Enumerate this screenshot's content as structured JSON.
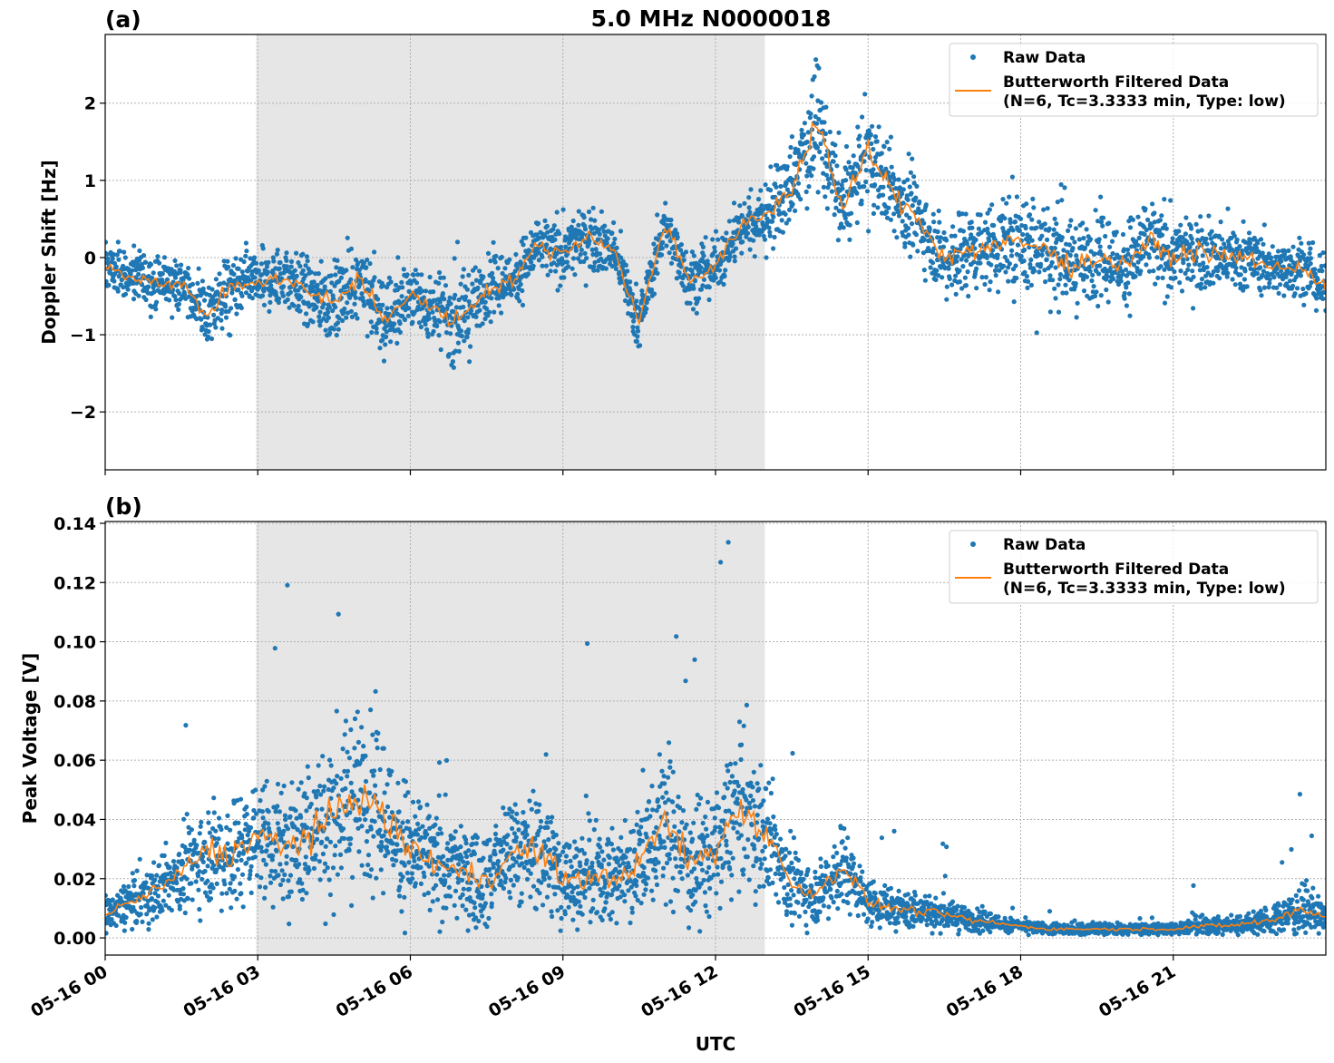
{
  "title": "5.0 MHz N0000018",
  "chart_data": [
    {
      "type": "scatter",
      "panel_label": "(a)",
      "title": "5.0 MHz N0000018",
      "xlabel": "",
      "ylabel": "Doppler Shift [Hz]",
      "xlim_hours": [
        0,
        24
      ],
      "ylim": [
        -2.75,
        2.89
      ],
      "yticks": [
        -2,
        -1,
        0,
        1,
        2
      ],
      "ytick_labels": [
        "−2",
        "−1",
        "0",
        "1",
        "2"
      ],
      "grid": true,
      "shaded_interval_hours": [
        2.97,
        12.97
      ],
      "legend": {
        "position": "top-right",
        "entries": [
          "Raw Data",
          "Butterworth Filtered Data",
          "(N=6, Tc=3.3333 min, Type: low)"
        ]
      },
      "x_hours": [
        0,
        0.5,
        1,
        1.5,
        2,
        2.5,
        3,
        3.5,
        4,
        4.5,
        5,
        5.5,
        6,
        6.5,
        7,
        7.5,
        8,
        8.5,
        9,
        9.5,
        10,
        10.5,
        11,
        11.5,
        12,
        12.5,
        13,
        13.5,
        14,
        14.5,
        15,
        15.5,
        16,
        16.5,
        17,
        17.5,
        18,
        18.5,
        19,
        19.5,
        20,
        20.5,
        21,
        21.5,
        22,
        22.5,
        23,
        23.5,
        24
      ],
      "series": [
        {
          "name": "Butterworth Filtered Data",
          "kind": "line",
          "color": "#ff7f0e",
          "values": [
            -0.1,
            -0.25,
            -0.3,
            -0.35,
            -0.75,
            -0.35,
            -0.35,
            -0.25,
            -0.45,
            -0.6,
            -0.25,
            -0.85,
            -0.45,
            -0.7,
            -0.8,
            -0.4,
            -0.3,
            0.15,
            0.05,
            0.3,
            0.1,
            -0.85,
            0.45,
            -0.3,
            -0.1,
            0.4,
            0.55,
            0.9,
            1.8,
            0.6,
            1.4,
            0.8,
            0.5,
            0.0,
            0.1,
            0.15,
            0.2,
            0.1,
            -0.1,
            0.0,
            -0.1,
            0.2,
            0.0,
            0.1,
            0.0,
            0.0,
            -0.15,
            -0.1,
            -0.4
          ]
        },
        {
          "name": "Raw Data",
          "kind": "scatter",
          "color": "#1f77b4",
          "spread_halfwidth": [
            0.3,
            0.3,
            0.3,
            0.3,
            0.4,
            0.35,
            0.35,
            0.4,
            0.45,
            0.5,
            0.45,
            0.5,
            0.4,
            0.4,
            0.6,
            0.4,
            0.35,
            0.35,
            0.4,
            0.4,
            0.35,
            0.35,
            0.35,
            0.35,
            0.35,
            0.35,
            0.45,
            0.6,
            0.7,
            0.5,
            0.55,
            0.55,
            0.5,
            0.5,
            0.55,
            0.55,
            0.6,
            0.55,
            0.55,
            0.55,
            0.5,
            0.55,
            0.5,
            0.45,
            0.45,
            0.4,
            0.35,
            0.35,
            0.35
          ]
        }
      ]
    },
    {
      "type": "scatter",
      "panel_label": "(b)",
      "xlabel": "UTC",
      "ylabel": "Peak Voltage [V]",
      "xlim_hours": [
        0,
        24
      ],
      "ylim": [
        -0.0058,
        0.1406
      ],
      "yticks": [
        0,
        0.02,
        0.04,
        0.06,
        0.08,
        0.1,
        0.12,
        0.14
      ],
      "ytick_labels": [
        "0.00",
        "0.02",
        "0.04",
        "0.06",
        "0.08",
        "0.10",
        "0.12",
        "0.14"
      ],
      "xtick_labels": [
        "05-16 00",
        "05-16 03",
        "05-16 06",
        "05-16 09",
        "05-16 12",
        "05-16 15",
        "05-16 18",
        "05-16 21"
      ],
      "grid": true,
      "shaded_interval_hours": [
        2.97,
        12.97
      ],
      "legend": {
        "position": "top-right",
        "entries": [
          "Raw Data",
          "Butterworth Filtered Data",
          "(N=6, Tc=3.3333 min, Type: low)"
        ]
      },
      "x_hours": [
        0,
        0.5,
        1,
        1.5,
        2,
        2.5,
        3,
        3.5,
        4,
        4.5,
        5,
        5.5,
        6,
        6.5,
        7,
        7.5,
        8,
        8.5,
        9,
        9.5,
        10,
        10.5,
        11,
        11.5,
        12,
        12.5,
        13,
        13.5,
        14,
        14.5,
        15,
        15.5,
        16,
        16.5,
        17,
        17.5,
        18,
        18.5,
        19,
        19.5,
        20,
        20.5,
        21,
        21.5,
        22,
        22.5,
        23,
        23.5,
        24
      ],
      "series": [
        {
          "name": "Butterworth Filtered Data",
          "kind": "line",
          "color": "#ff7f0e",
          "values": [
            0.008,
            0.012,
            0.016,
            0.022,
            0.03,
            0.028,
            0.035,
            0.03,
            0.035,
            0.04,
            0.05,
            0.04,
            0.03,
            0.025,
            0.022,
            0.02,
            0.028,
            0.03,
            0.02,
            0.02,
            0.02,
            0.025,
            0.04,
            0.025,
            0.03,
            0.045,
            0.035,
            0.018,
            0.015,
            0.025,
            0.012,
            0.01,
            0.009,
            0.008,
            0.006,
            0.005,
            0.004,
            0.003,
            0.003,
            0.003,
            0.003,
            0.003,
            0.003,
            0.004,
            0.004,
            0.005,
            0.006,
            0.01,
            0.007
          ]
        },
        {
          "name": "Raw Data",
          "kind": "scatter",
          "color": "#1f77b4",
          "spread_halfwidth": [
            0.006,
            0.008,
            0.01,
            0.012,
            0.018,
            0.018,
            0.02,
            0.02,
            0.022,
            0.025,
            0.03,
            0.025,
            0.02,
            0.018,
            0.016,
            0.015,
            0.018,
            0.02,
            0.016,
            0.016,
            0.016,
            0.018,
            0.025,
            0.018,
            0.02,
            0.025,
            0.02,
            0.012,
            0.01,
            0.014,
            0.008,
            0.006,
            0.006,
            0.005,
            0.004,
            0.003,
            0.002,
            0.002,
            0.002,
            0.002,
            0.002,
            0.002,
            0.002,
            0.003,
            0.003,
            0.004,
            0.005,
            0.008,
            0.005
          ]
        }
      ]
    }
  ]
}
